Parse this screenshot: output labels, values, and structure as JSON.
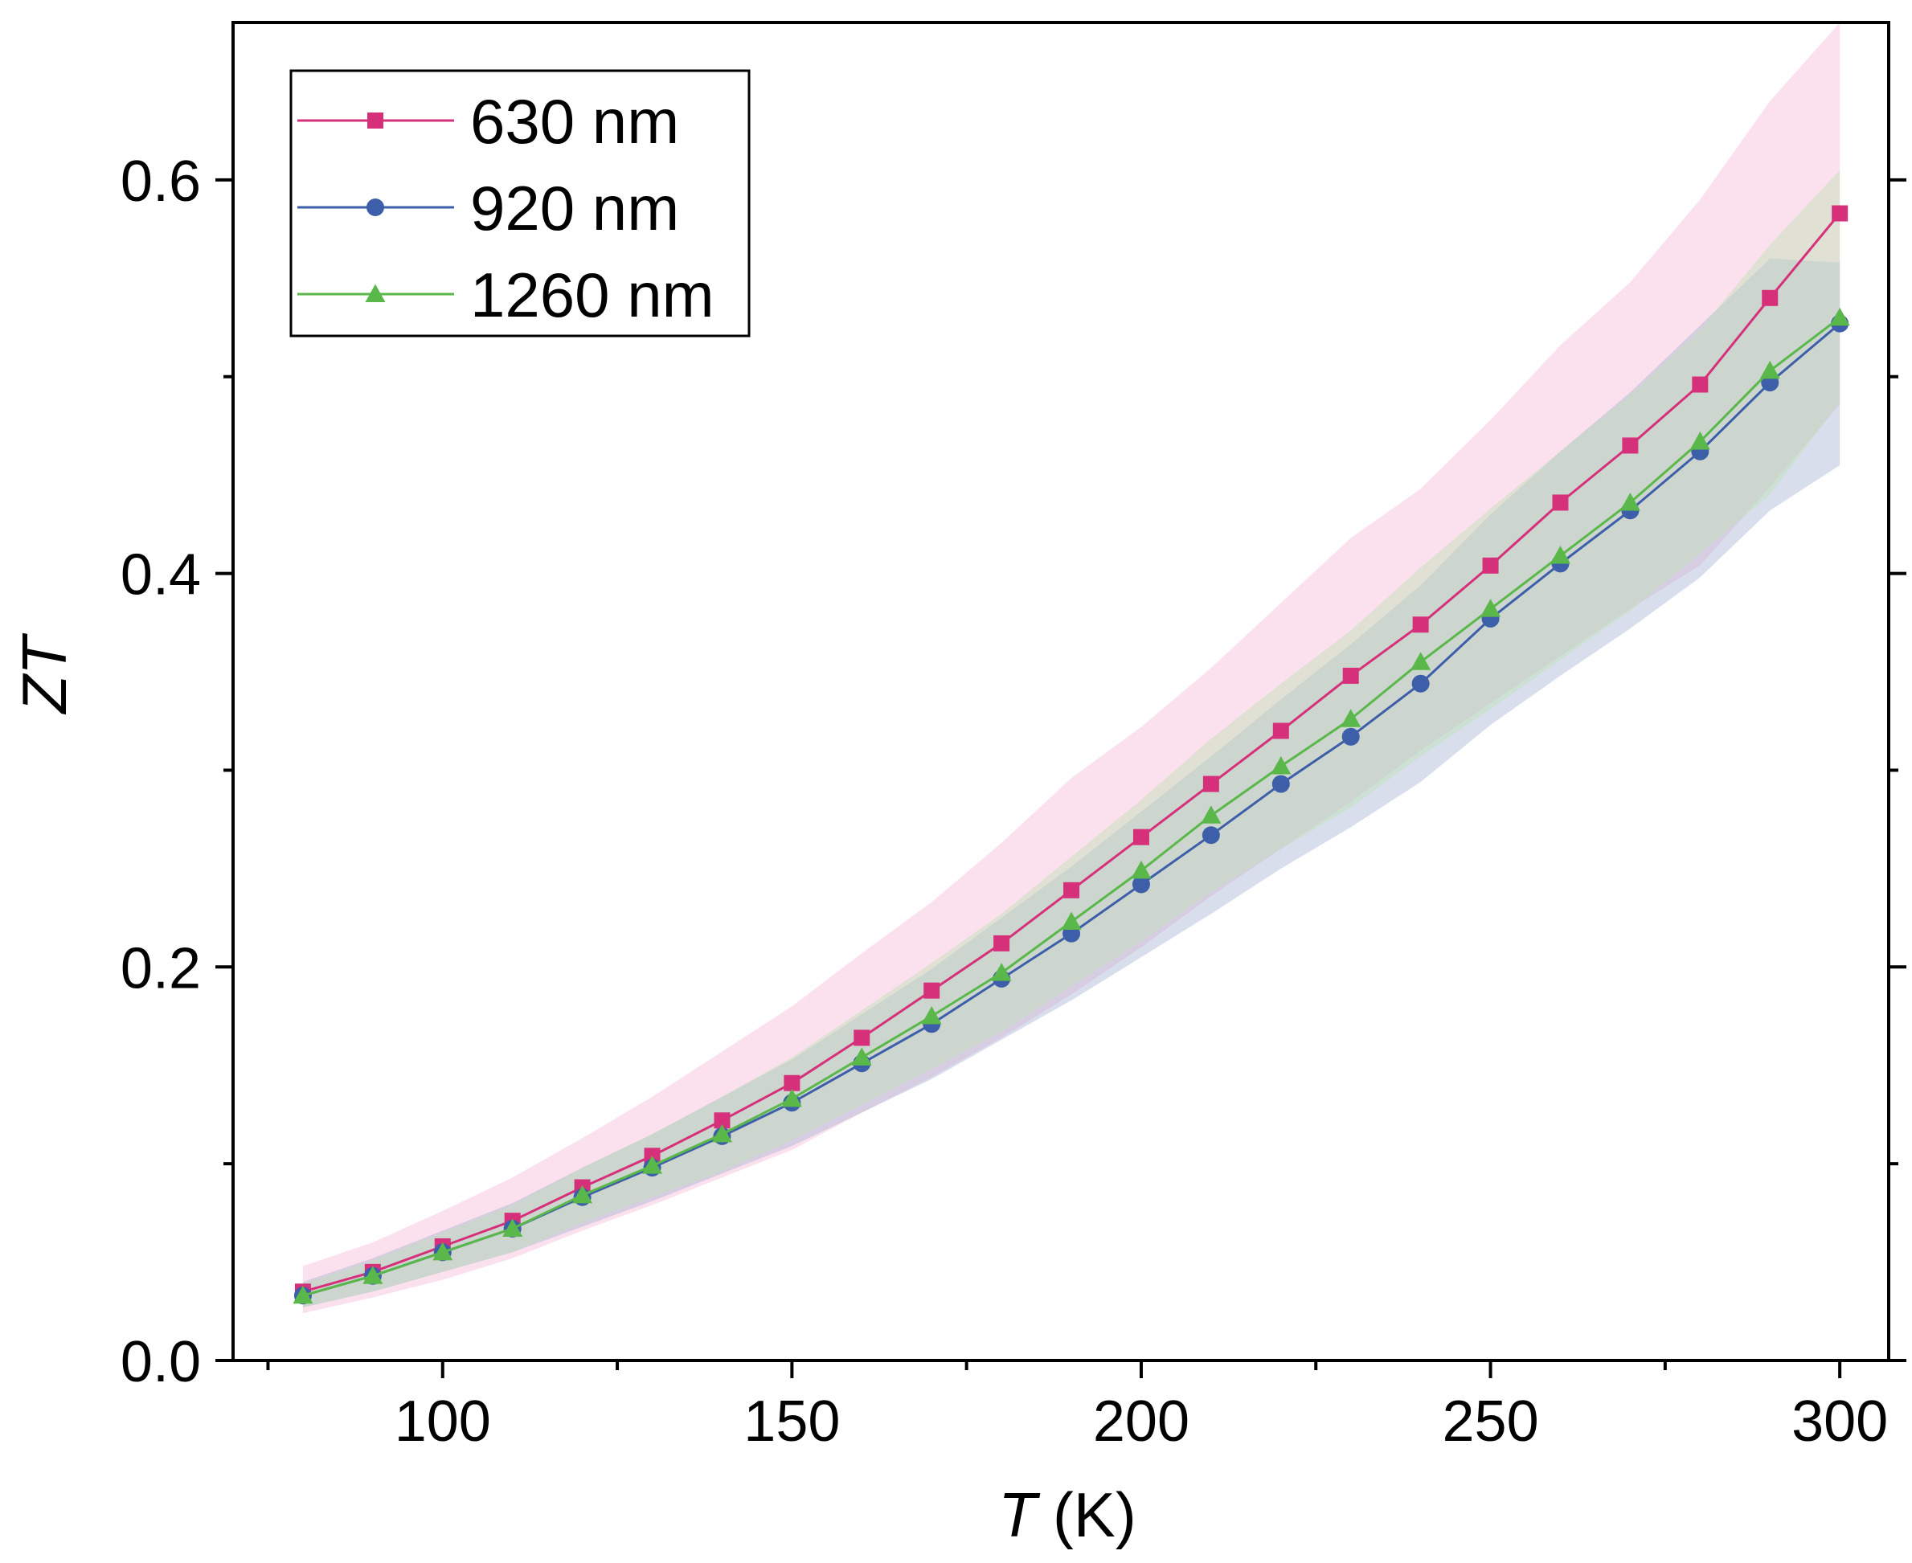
{
  "chart_data": {
    "type": "line",
    "title": "",
    "xlabel": "T (K)",
    "xlabel_var": "T",
    "xlabel_unit": "(K)",
    "ylabel": "ZT",
    "xlim": [
      70,
      307
    ],
    "ylim": [
      0.0,
      0.68
    ],
    "x_ticks": [
      100,
      150,
      200,
      250,
      300
    ],
    "x_minor_ticks": [
      75,
      125,
      175,
      225,
      275
    ],
    "y_ticks": [
      0.0,
      0.2,
      0.4,
      0.6
    ],
    "y_tick_labels": [
      "0.0",
      "0.2",
      "0.4",
      "0.6"
    ],
    "y_minor_ticks": [
      0.1,
      0.3,
      0.5
    ],
    "x_tick_labels": [
      "100",
      "150",
      "200",
      "250",
      "300"
    ],
    "grid": false,
    "legend_position": "top-left",
    "x": [
      80,
      90,
      100,
      110,
      120,
      130,
      140,
      150,
      160,
      170,
      180,
      190,
      200,
      210,
      220,
      230,
      240,
      250,
      260,
      270,
      280,
      290,
      300
    ],
    "series": [
      {
        "name": "630 nm",
        "color": "#d6307a",
        "marker": "square",
        "values": [
          0.035,
          0.045,
          0.058,
          0.071,
          0.088,
          0.104,
          0.122,
          0.141,
          0.164,
          0.188,
          0.212,
          0.239,
          0.266,
          0.293,
          0.32,
          0.348,
          0.374,
          0.404,
          0.436,
          0.465,
          0.496,
          0.54,
          0.583
        ],
        "band_upper": [
          0.048,
          0.06,
          0.076,
          0.093,
          0.113,
          0.134,
          0.157,
          0.18,
          0.207,
          0.233,
          0.263,
          0.296,
          0.322,
          0.352,
          0.385,
          0.418,
          0.443,
          0.478,
          0.516,
          0.548,
          0.59,
          0.64,
          0.68
        ],
        "band_lower": [
          0.024,
          0.032,
          0.041,
          0.052,
          0.066,
          0.079,
          0.093,
          0.107,
          0.126,
          0.144,
          0.164,
          0.186,
          0.21,
          0.236,
          0.26,
          0.284,
          0.31,
          0.334,
          0.358,
          0.382,
          0.404,
          0.444,
          0.486
        ],
        "band_color": "#f7bcd6"
      },
      {
        "name": "920 nm",
        "color": "#3d5ea8",
        "marker": "circle",
        "values": [
          0.033,
          0.043,
          0.055,
          0.067,
          0.083,
          0.098,
          0.114,
          0.131,
          0.151,
          0.171,
          0.194,
          0.217,
          0.242,
          0.267,
          0.293,
          0.317,
          0.344,
          0.377,
          0.405,
          0.432,
          0.462,
          0.497,
          0.527
        ],
        "band_upper": [
          0.04,
          0.052,
          0.066,
          0.08,
          0.098,
          0.115,
          0.134,
          0.153,
          0.176,
          0.199,
          0.225,
          0.251,
          0.279,
          0.307,
          0.336,
          0.364,
          0.394,
          0.43,
          0.462,
          0.492,
          0.526,
          0.56,
          0.558
        ],
        "band_lower": [
          0.027,
          0.035,
          0.045,
          0.055,
          0.068,
          0.081,
          0.095,
          0.109,
          0.126,
          0.143,
          0.163,
          0.183,
          0.205,
          0.227,
          0.25,
          0.271,
          0.294,
          0.323,
          0.348,
          0.372,
          0.398,
          0.432,
          0.455
        ],
        "band_color": "#aab6d6"
      },
      {
        "name": "1260 nm",
        "color": "#5ab84a",
        "marker": "triangle",
        "values": [
          0.033,
          0.043,
          0.055,
          0.067,
          0.084,
          0.099,
          0.115,
          0.133,
          0.154,
          0.175,
          0.197,
          0.223,
          0.249,
          0.277,
          0.302,
          0.326,
          0.355,
          0.382,
          0.409,
          0.436,
          0.467,
          0.503,
          0.53
        ],
        "band_upper": [
          0.039,
          0.051,
          0.065,
          0.079,
          0.098,
          0.115,
          0.134,
          0.154,
          0.178,
          0.202,
          0.227,
          0.256,
          0.285,
          0.316,
          0.344,
          0.371,
          0.403,
          0.433,
          0.462,
          0.491,
          0.524,
          0.567,
          0.605
        ],
        "band_lower": [
          0.027,
          0.035,
          0.045,
          0.055,
          0.07,
          0.083,
          0.096,
          0.112,
          0.13,
          0.148,
          0.167,
          0.19,
          0.213,
          0.238,
          0.26,
          0.281,
          0.307,
          0.331,
          0.356,
          0.381,
          0.41,
          0.44,
          0.487
        ],
        "band_color": "#bfe3b5"
      }
    ]
  }
}
